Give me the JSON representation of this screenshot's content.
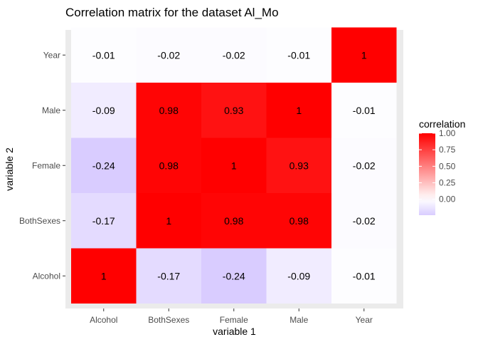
{
  "chart_data": {
    "type": "heatmap",
    "title": "Correlation matrix for the dataset Al_Mo",
    "xlabel": "variable 1",
    "ylabel": "variable 2",
    "x_categories": [
      "Alcohol",
      "BothSexes",
      "Female",
      "Male",
      "Year"
    ],
    "y_categories": [
      "Alcohol",
      "BothSexes",
      "Female",
      "Male",
      "Year"
    ],
    "values": [
      [
        1,
        -0.17,
        -0.24,
        -0.09,
        -0.01
      ],
      [
        -0.17,
        1,
        0.98,
        0.98,
        -0.02
      ],
      [
        -0.24,
        0.98,
        1,
        0.93,
        -0.02
      ],
      [
        -0.09,
        0.98,
        0.93,
        1,
        -0.01
      ],
      [
        -0.01,
        -0.02,
        -0.02,
        -0.01,
        1
      ]
    ],
    "colors": {
      "low": "#d9ccff",
      "mid": "#ffffff",
      "high": "#ff0000",
      "panel_background": "#ebebeb"
    },
    "color_scale": {
      "min": -0.24,
      "mid": 0,
      "max": 1
    },
    "legend": {
      "title": "correlation",
      "ticks": [
        1.0,
        0.75,
        0.5,
        0.25,
        0.0
      ],
      "tick_labels": [
        "1.00",
        "0.75",
        "0.50",
        "0.25",
        "0.00"
      ],
      "placement": "right"
    },
    "grid": true
  }
}
